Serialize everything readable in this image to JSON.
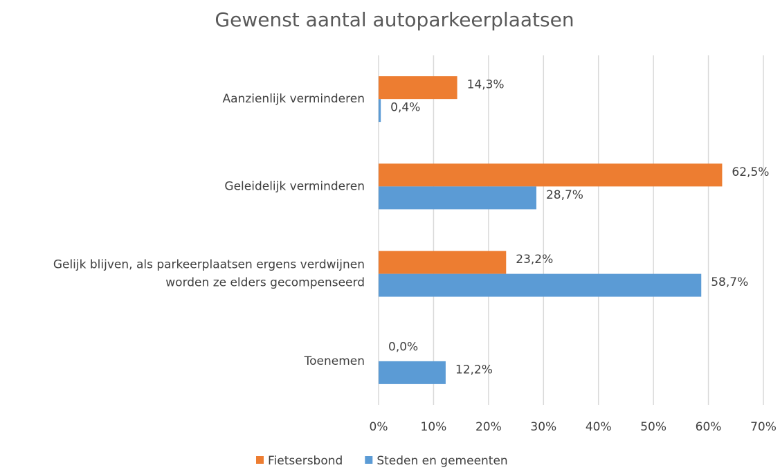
{
  "chart_data": {
    "type": "bar",
    "orientation": "horizontal",
    "title": "Gewenst aantal autoparkeerplaatsen",
    "categories": [
      "Aanzienlijk verminderen",
      "Geleidelijk verminderen",
      "Gelijk blijven, als parkeerplaatsen ergens verdwijnen\nworden ze elders gecompenseerd",
      "Toenemen"
    ],
    "series": [
      {
        "name": "Fietsersbond",
        "color": "#ED7D31",
        "values": [
          14.3,
          62.5,
          23.2,
          0.0
        ],
        "value_labels": [
          "14,3%",
          "62,5%",
          "23,2%",
          "0,0%"
        ]
      },
      {
        "name": "Steden en gemeenten",
        "color": "#5B9BD5",
        "values": [
          0.4,
          28.7,
          58.7,
          12.2
        ],
        "value_labels": [
          "0,4%",
          "28,7%",
          "58,7%",
          "12,2%"
        ]
      }
    ],
    "xlim": [
      0,
      70
    ],
    "xticks": [
      {
        "value": 0,
        "label": "0%"
      },
      {
        "value": 10,
        "label": "10%"
      },
      {
        "value": 20,
        "label": "20%"
      },
      {
        "value": 30,
        "label": "30%"
      },
      {
        "value": 40,
        "label": "40%"
      },
      {
        "value": 50,
        "label": "50%"
      },
      {
        "value": 60,
        "label": "60%"
      },
      {
        "value": 70,
        "label": "70%"
      }
    ],
    "grid": true,
    "legend": "bottom"
  }
}
